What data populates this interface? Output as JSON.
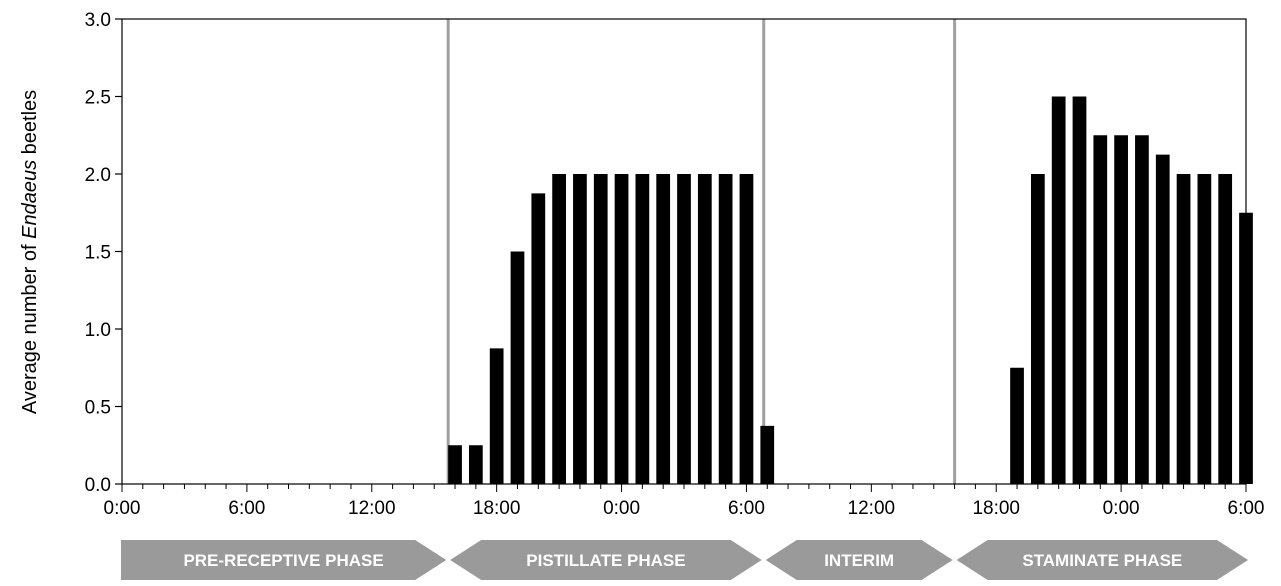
{
  "chart_data": {
    "type": "bar",
    "ylabel_prefix": "Average number of ",
    "ylabel_italic": "Endaeus",
    "ylabel_suffix": " beetles",
    "ylim": [
      0,
      3.0
    ],
    "yticks": [
      "0.0",
      "0.5",
      "1.0",
      "1.5",
      "2.0",
      "2.5",
      "3.0"
    ],
    "x_hours_range": [
      0,
      54
    ],
    "xticks": [
      {
        "hour": 0,
        "label": "0:00"
      },
      {
        "hour": 6,
        "label": "6:00"
      },
      {
        "hour": 12,
        "label": "12:00"
      },
      {
        "hour": 18,
        "label": "18:00"
      },
      {
        "hour": 24,
        "label": "0:00"
      },
      {
        "hour": 30,
        "label": "6:00"
      },
      {
        "hour": 36,
        "label": "12:00"
      },
      {
        "hour": 42,
        "label": "18:00"
      },
      {
        "hour": 48,
        "label": "0:00"
      },
      {
        "hour": 54,
        "label": "6:00"
      }
    ],
    "bars": [
      {
        "hour": 16,
        "value": 0.25
      },
      {
        "hour": 17,
        "value": 0.25
      },
      {
        "hour": 18,
        "value": 0.875
      },
      {
        "hour": 19,
        "value": 1.5
      },
      {
        "hour": 20,
        "value": 1.875
      },
      {
        "hour": 21,
        "value": 2.0
      },
      {
        "hour": 22,
        "value": 2.0
      },
      {
        "hour": 23,
        "value": 2.0
      },
      {
        "hour": 24,
        "value": 2.0
      },
      {
        "hour": 25,
        "value": 2.0
      },
      {
        "hour": 26,
        "value": 2.0
      },
      {
        "hour": 27,
        "value": 2.0
      },
      {
        "hour": 28,
        "value": 2.0
      },
      {
        "hour": 29,
        "value": 2.0
      },
      {
        "hour": 30,
        "value": 2.0
      },
      {
        "hour": 31,
        "value": 0.375
      },
      {
        "hour": 42,
        "value": 0.0
      },
      {
        "hour": 43,
        "value": 0.75
      },
      {
        "hour": 44,
        "value": 2.0
      },
      {
        "hour": 45,
        "value": 2.5
      },
      {
        "hour": 46,
        "value": 2.5
      },
      {
        "hour": 47,
        "value": 2.25
      },
      {
        "hour": 48,
        "value": 2.25
      },
      {
        "hour": 49,
        "value": 2.25
      },
      {
        "hour": 50,
        "value": 2.125
      },
      {
        "hour": 51,
        "value": 2.0
      },
      {
        "hour": 52,
        "value": 2.0
      },
      {
        "hour": 53,
        "value": 2.0
      },
      {
        "hour": 54,
        "value": 1.75
      }
    ],
    "phase_dividers_hours": [
      15.67,
      30.83,
      40
    ],
    "phases": [
      {
        "label": "PRE-RECEPTIVE PHASE",
        "from_hour": 0,
        "to_hour": 15.67,
        "direction": "right"
      },
      {
        "label": "PISTILLATE PHASE",
        "from_hour": 15.67,
        "to_hour": 30.83,
        "direction": "both"
      },
      {
        "label": "INTERIM",
        "from_hour": 30.83,
        "to_hour": 40,
        "direction": "both"
      },
      {
        "label": "STAMINATE PHASE",
        "from_hour": 40,
        "to_hour": 54,
        "direction": "both"
      }
    ],
    "colors": {
      "bar": "#000000",
      "divider": "#a0a0a0",
      "phase_arrow": "#9a9a9a",
      "phase_text": "#ffffff"
    }
  }
}
